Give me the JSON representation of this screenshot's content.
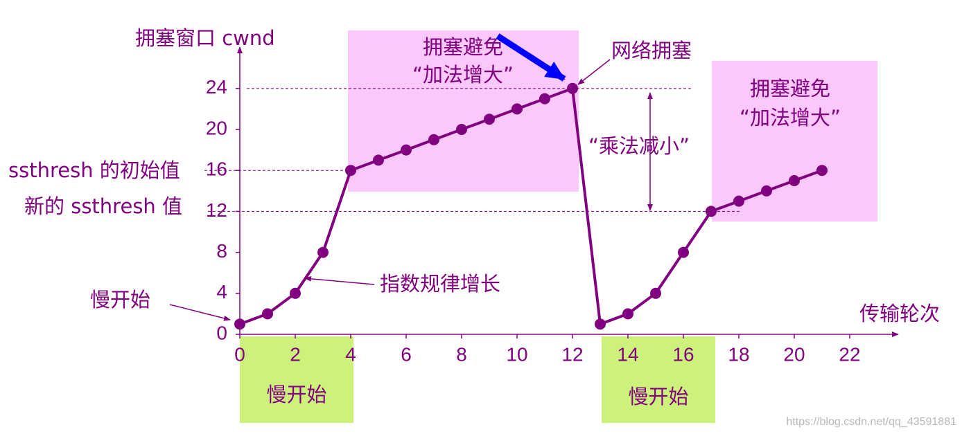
{
  "chart_data": {
    "type": "line",
    "y_label": "拥塞窗口 cwnd",
    "x_label": "传输轮次",
    "x": [
      0,
      1,
      2,
      3,
      4,
      5,
      6,
      7,
      8,
      9,
      10,
      11,
      12,
      13,
      14,
      15,
      16,
      17,
      18,
      19,
      20,
      21
    ],
    "values": [
      1,
      2,
      4,
      8,
      16,
      17,
      18,
      19,
      20,
      21,
      22,
      23,
      24,
      1,
      2,
      4,
      8,
      12,
      13,
      14,
      15,
      16
    ],
    "color": "#800080",
    "xlim": [
      0,
      23.5
    ],
    "ylim": [
      0,
      27.5
    ],
    "xticks": [
      0,
      2,
      4,
      6,
      8,
      10,
      12,
      14,
      16,
      18,
      20,
      22
    ],
    "yticks": [
      0,
      4,
      8,
      12,
      16,
      20,
      24
    ],
    "annotations": [
      "拥塞避免",
      "“加法增大”",
      "网络拥塞",
      "拥塞避免",
      "“加法增大”",
      "“乘法减小”",
      "ssthresh 的初始值",
      "新的 ssthresh 值",
      "慢开始",
      "指数规律增长",
      "慢开始",
      "慢开始"
    ],
    "watermark": "https://blog.csdn.net/qq_43591881"
  }
}
